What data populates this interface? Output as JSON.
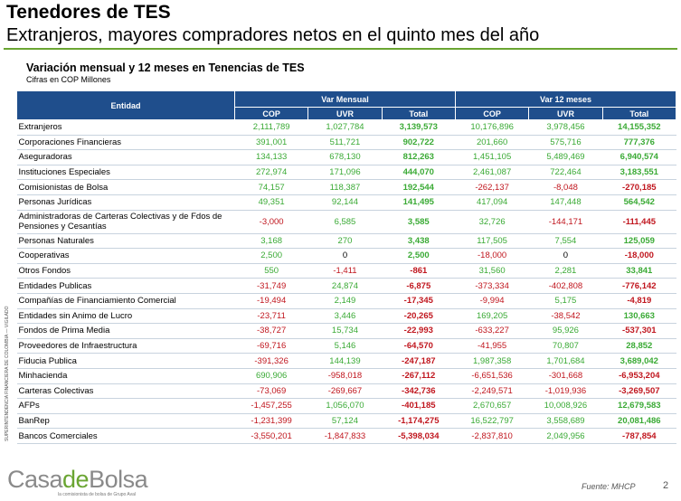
{
  "header": {
    "title": "Tenedores de TES",
    "subtitle": "Extranjeros, mayores compradores netos en el quinto mes del año"
  },
  "table": {
    "title": "Variación mensual y 12 meses en Tenencias de TES",
    "units": "Cifras en COP Millones",
    "col_entity": "Entidad",
    "group_month": "Var Mensual",
    "group_12m": "Var 12 meses",
    "sub_cols": [
      "COP",
      "UVR",
      "Total",
      "COP",
      "UVR",
      "Total"
    ],
    "rows": [
      {
        "entity": "Extranjeros",
        "v": [
          "2,111,789",
          "1,027,784",
          "3,139,573",
          "10,176,896",
          "3,978,456",
          "14,155,352"
        ]
      },
      {
        "entity": "Corporaciones Financieras",
        "v": [
          "391,001",
          "511,721",
          "902,722",
          "201,660",
          "575,716",
          "777,376"
        ]
      },
      {
        "entity": "Aseguradoras",
        "v": [
          "134,133",
          "678,130",
          "812,263",
          "1,451,105",
          "5,489,469",
          "6,940,574"
        ]
      },
      {
        "entity": "Instituciones Especiales",
        "v": [
          "272,974",
          "171,096",
          "444,070",
          "2,461,087",
          "722,464",
          "3,183,551"
        ]
      },
      {
        "entity": "Comisionistas de Bolsa",
        "v": [
          "74,157",
          "118,387",
          "192,544",
          "-262,137",
          "-8,048",
          "-270,185"
        ]
      },
      {
        "entity": "Personas Jurídicas",
        "v": [
          "49,351",
          "92,144",
          "141,495",
          "417,094",
          "147,448",
          "564,542"
        ]
      },
      {
        "entity": "Administradoras de Carteras Colectivas y de Fdos de Pensiones y Cesantías",
        "v": [
          "-3,000",
          "6,585",
          "3,585",
          "32,726",
          "-144,171",
          "-111,445"
        ]
      },
      {
        "entity": "Personas Naturales",
        "v": [
          "3,168",
          "270",
          "3,438",
          "117,505",
          "7,554",
          "125,059"
        ]
      },
      {
        "entity": "Cooperativas",
        "v": [
          "2,500",
          "0",
          "2,500",
          "-18,000",
          "0",
          "-18,000"
        ]
      },
      {
        "entity": "Otros Fondos",
        "v": [
          "550",
          "-1,411",
          "-861",
          "31,560",
          "2,281",
          "33,841"
        ]
      },
      {
        "entity": "Entidades Publicas",
        "v": [
          "-31,749",
          "24,874",
          "-6,875",
          "-373,334",
          "-402,808",
          "-776,142"
        ]
      },
      {
        "entity": "Compañías de Financiamiento Comercial",
        "v": [
          "-19,494",
          "2,149",
          "-17,345",
          "-9,994",
          "5,175",
          "-4,819"
        ]
      },
      {
        "entity": "Entidades sin Animo de Lucro",
        "v": [
          "-23,711",
          "3,446",
          "-20,265",
          "169,205",
          "-38,542",
          "130,663"
        ]
      },
      {
        "entity": "Fondos de Prima Media",
        "v": [
          "-38,727",
          "15,734",
          "-22,993",
          "-633,227",
          "95,926",
          "-537,301"
        ]
      },
      {
        "entity": "Proveedores de Infraestructura",
        "v": [
          "-69,716",
          "5,146",
          "-64,570",
          "-41,955",
          "70,807",
          "28,852"
        ]
      },
      {
        "entity": "Fiducia Publica",
        "v": [
          "-391,326",
          "144,139",
          "-247,187",
          "1,987,358",
          "1,701,684",
          "3,689,042"
        ]
      },
      {
        "entity": "Minhacienda",
        "v": [
          "690,906",
          "-958,018",
          "-267,112",
          "-6,651,536",
          "-301,668",
          "-6,953,204"
        ]
      },
      {
        "entity": "Carteras Colectivas",
        "v": [
          "-73,069",
          "-269,667",
          "-342,736",
          "-2,249,571",
          "-1,019,936",
          "-3,269,507"
        ]
      },
      {
        "entity": "AFPs",
        "v": [
          "-1,457,255",
          "1,056,070",
          "-401,185",
          "2,670,657",
          "10,008,926",
          "12,679,583"
        ]
      },
      {
        "entity": "BanRep",
        "v": [
          "-1,231,399",
          "57,124",
          "-1,174,275",
          "16,522,797",
          "3,558,689",
          "20,081,486"
        ]
      },
      {
        "entity": "Bancos Comerciales",
        "v": [
          "-3,550,201",
          "-1,847,833",
          "-5,398,034",
          "-2,837,810",
          "2,049,956",
          "-787,854"
        ]
      }
    ]
  },
  "side_label": "SUPERINTENDENCIA FINANCIERA DE COLOMBIA — VIGILADO",
  "footer": {
    "logo_gray_1": "Casa",
    "logo_green": "de",
    "logo_gray_2": "Bolsa",
    "logo_tagline": "la comisionista de bolsa de Grupo Aval",
    "source": "Fuente: MHCP",
    "page_number": "2"
  },
  "colors": {
    "header_blue": "#1f4e8c",
    "positive": "#3aaa35",
    "negative": "#c0161e",
    "brand_green": "#6aa532"
  }
}
